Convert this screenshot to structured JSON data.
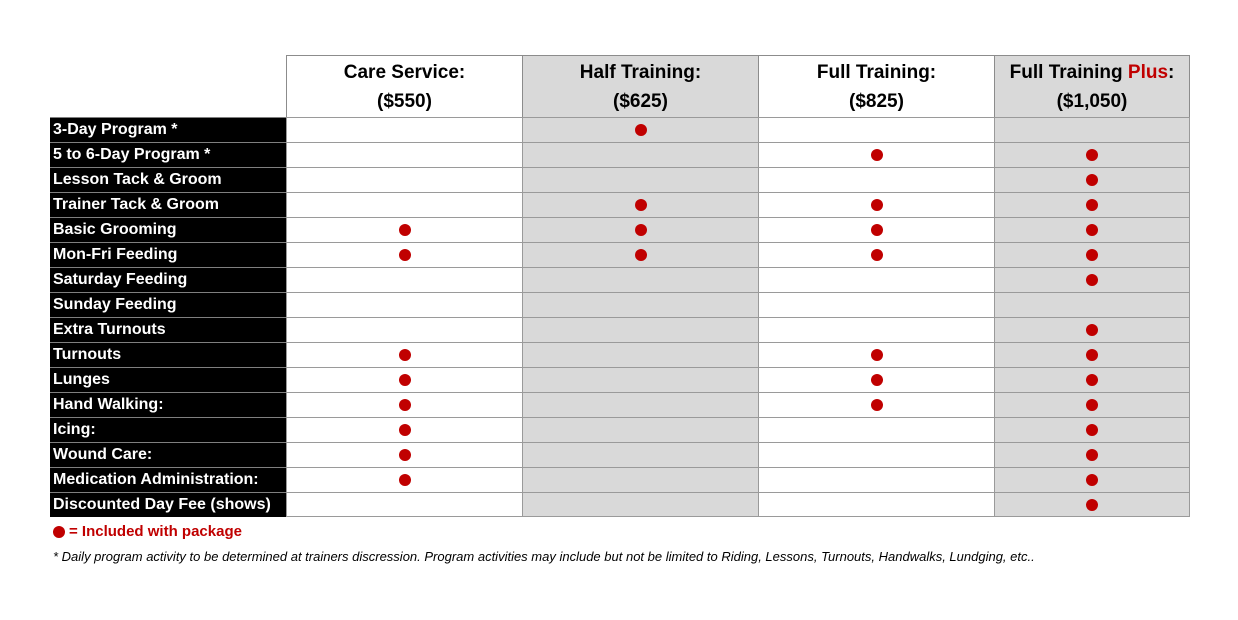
{
  "columns": [
    {
      "name": "Care Service:",
      "name_plus": "",
      "name_suffix": "",
      "price": "($550)",
      "shaded": false
    },
    {
      "name": "Half Training:",
      "name_plus": "",
      "name_suffix": "",
      "price": "($625)",
      "shaded": true
    },
    {
      "name": "Full Training:",
      "name_plus": "",
      "name_suffix": "",
      "price": "($825)",
      "shaded": false
    },
    {
      "name": "Full Training ",
      "name_plus": "Plus",
      "name_suffix": ":",
      "price": "($1,050)",
      "shaded": true
    }
  ],
  "rows": [
    {
      "label": "3-Day Program  *",
      "included": [
        false,
        true,
        false,
        false
      ]
    },
    {
      "label": "5 to 6-Day Program  *",
      "included": [
        false,
        false,
        true,
        true
      ]
    },
    {
      "label": "Lesson Tack & Groom",
      "included": [
        false,
        false,
        false,
        true
      ]
    },
    {
      "label": "Trainer Tack & Groom",
      "included": [
        false,
        true,
        true,
        true
      ]
    },
    {
      "label": "Basic Grooming",
      "included": [
        true,
        true,
        true,
        true
      ]
    },
    {
      "label": "Mon-Fri Feeding",
      "included": [
        true,
        true,
        true,
        true
      ]
    },
    {
      "label": "Saturday Feeding",
      "included": [
        false,
        false,
        false,
        true
      ]
    },
    {
      "label": "Sunday Feeding",
      "included": [
        false,
        false,
        false,
        false
      ]
    },
    {
      "label": "Extra Turnouts",
      "included": [
        false,
        false,
        false,
        true
      ]
    },
    {
      "label": "Turnouts",
      "included": [
        true,
        false,
        true,
        true
      ]
    },
    {
      "label": "Lunges",
      "included": [
        true,
        false,
        true,
        true
      ]
    },
    {
      "label": "Hand Walking:",
      "included": [
        true,
        false,
        true,
        true
      ]
    },
    {
      "label": "Icing:",
      "included": [
        true,
        false,
        false,
        true
      ]
    },
    {
      "label": "Wound Care:",
      "included": [
        true,
        false,
        false,
        true
      ]
    },
    {
      "label": "Medication Administration:",
      "included": [
        true,
        false,
        false,
        true
      ]
    },
    {
      "label": "Discounted Day Fee (shows)",
      "included": [
        false,
        false,
        false,
        true
      ]
    }
  ],
  "legend": {
    "text": "= Included with package",
    "icon": "red-dot-icon",
    "color": "#c00000"
  },
  "footnote": "* Daily program activity to be determined at trainers discression. Program activities may include but not be limited to Riding, Lessons, Turnouts, Handwalks, Lundging, etc..",
  "colors": {
    "accent": "#c00000",
    "label_bg": "#000000",
    "shade": "#d9d9d9"
  }
}
